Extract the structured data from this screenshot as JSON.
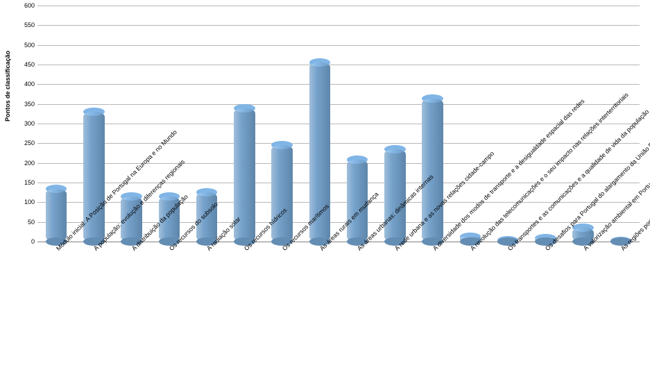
{
  "chart": {
    "type": "bar",
    "ylabel": "Pontos de classificação",
    "label_fontsize": 9,
    "label_fontweight": "bold",
    "background_color": "#ffffff",
    "grid_color": "#b7b7b7",
    "baseline_color": "#808080",
    "bar_color": "#6f9dc8",
    "bar_width_ratio": 0.56,
    "ylim": [
      0,
      600
    ],
    "ytick_step": 50,
    "yticks": [
      0,
      50,
      100,
      150,
      200,
      250,
      300,
      350,
      400,
      450,
      500,
      550,
      600
    ],
    "categories": [
      "Módulo inicial: A Posição de Portugal na Europa e no Mundo",
      "A população: evolução e diferenças regionais",
      "A distribuição da população",
      "Os recursos do subsolo",
      "A radiação solar",
      "Os recursos hídricos",
      "Os recursos marítimos",
      "As áreas rurais em mudança",
      "As áreas urbanas: dinâmicas internas",
      "A rede urbana e as novas relações cidade-campo",
      "A diversidade dos modos de transporte e a desigualdade espacial das redes",
      "A revolução das telecomunicações e o seu impacto nas relações interterritoriais",
      "Os transportes e as comunicações e a qualidade de vida da população",
      "Os desafios para Portugal do alargamento da União Europeia",
      "A valorização ambiental em Portugal e a Política Ambiental Comunitária",
      "As regiões portuguesas no contexto das políticas regionais da União Europeia"
    ],
    "values": [
      135,
      330,
      115,
      115,
      125,
      338,
      245,
      455,
      208,
      235,
      363,
      12,
      3,
      8,
      35,
      2
    ]
  }
}
